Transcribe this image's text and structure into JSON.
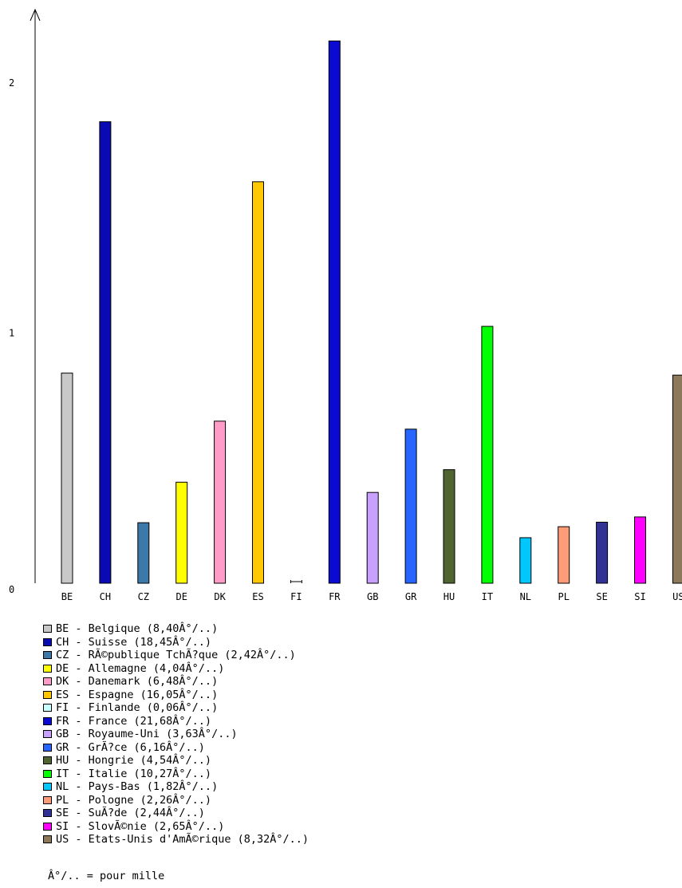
{
  "chart_data": {
    "type": "bar",
    "categories": [
      "BE",
      "CH",
      "CZ",
      "DE",
      "DK",
      "ES",
      "FI",
      "FR",
      "GB",
      "GR",
      "HU",
      "IT",
      "NL",
      "PL",
      "SE",
      "SI",
      "US"
    ],
    "values": [
      0.84,
      1.845,
      0.242,
      0.404,
      0.648,
      1.605,
      0.006,
      2.168,
      0.363,
      0.616,
      0.454,
      1.027,
      0.182,
      0.226,
      0.244,
      0.265,
      0.832
    ],
    "colors": [
      "#c8c8c8",
      "#0a0ab4",
      "#3c78a8",
      "#ffff00",
      "#ff9cc8",
      "#ffc800",
      "#c8ffff",
      "#0a0ad2",
      "#c8a0ff",
      "#2864ff",
      "#506432",
      "#00ff00",
      "#00c8ff",
      "#ff9c78",
      "#323296",
      "#ff00ff",
      "#8c785a"
    ],
    "y_ticks": [
      "0",
      "1",
      "2"
    ],
    "ylim": [
      0,
      2.2
    ],
    "grid": false,
    "legend_placement": "bottom-left",
    "legend": [
      {
        "text": "BE - Belgique (8,40Â°/..)"
      },
      {
        "text": "CH - Suisse (18,45Â°/..)"
      },
      {
        "text": "CZ - RÃ©publique TchÃ?que (2,42Â°/..)"
      },
      {
        "text": "DE - Allemagne (4,04Â°/..)"
      },
      {
        "text": "DK - Danemark (6,48Â°/..)"
      },
      {
        "text": "ES - Espagne (16,05Â°/..)"
      },
      {
        "text": "FI - Finlande (0,06Â°/..)"
      },
      {
        "text": "FR - France (21,68Â°/..)"
      },
      {
        "text": "GB - Royaume-Uni (3,63Â°/..)"
      },
      {
        "text": "GR - GrÃ?ce (6,16Â°/..)"
      },
      {
        "text": "HU - Hongrie (4,54Â°/..)"
      },
      {
        "text": "IT - Italie (10,27Â°/..)"
      },
      {
        "text": "NL - Pays-Bas (1,82Â°/..)"
      },
      {
        "text": "PL - Pologne (2,26Â°/..)"
      },
      {
        "text": "SE - SuÃ?de (2,44Â°/..)"
      },
      {
        "text": "SI - SlovÃ©nie (2,65Â°/..)"
      },
      {
        "text": "US - Etats-Unis d'AmÃ©rique (8,32Â°/..)"
      }
    ],
    "footnote": "Â°/.. = pour mille"
  }
}
